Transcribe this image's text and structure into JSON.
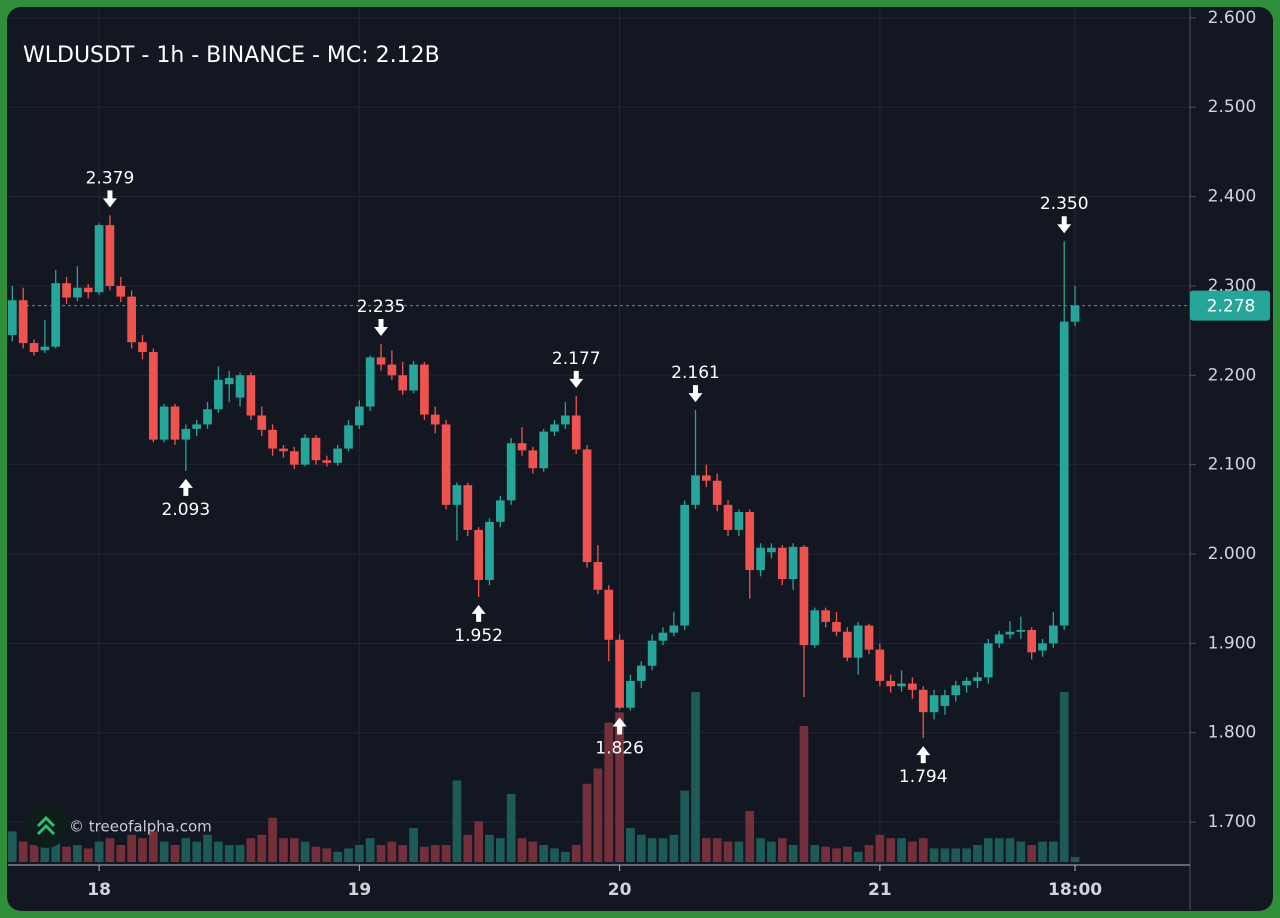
{
  "chart_data": {
    "type": "candlestick",
    "title": "WLDUSDT - 1h - BINANCE - MC: 2.12B",
    "watermark": "© treeofalpha.com",
    "x": [
      -8,
      -7,
      -6,
      -5,
      -4,
      -3,
      -2,
      -1,
      0,
      1,
      2,
      3,
      4,
      5,
      6,
      7,
      8,
      9,
      10,
      11,
      12,
      13,
      14,
      15,
      16,
      17,
      18,
      19,
      20,
      21,
      22,
      23,
      24,
      25,
      26,
      27,
      28,
      29,
      30,
      31,
      32,
      33,
      34,
      35,
      36,
      37,
      38,
      39,
      40,
      41,
      42,
      43,
      44,
      45,
      46,
      47,
      48,
      49,
      50,
      51,
      52,
      53,
      54,
      55,
      56,
      57,
      58,
      59,
      60,
      61,
      62,
      63,
      64,
      65,
      66,
      67,
      68,
      69,
      70,
      71,
      72,
      73,
      74,
      75,
      76,
      77,
      78,
      79,
      80,
      81,
      82,
      83,
      84,
      85,
      86,
      87,
      88,
      89,
      90
    ],
    "open": [
      2.245,
      2.284,
      2.236,
      2.228,
      2.232,
      2.303,
      2.287,
      2.298,
      2.293,
      2.368,
      2.3,
      2.288,
      2.237,
      2.226,
      2.128,
      2.165,
      2.128,
      2.14,
      2.145,
      2.162,
      2.19,
      2.175,
      2.2,
      2.155,
      2.139,
      2.118,
      2.115,
      2.1,
      2.13,
      2.105,
      2.102,
      2.118,
      2.144,
      2.165,
      2.22,
      2.212,
      2.2,
      2.183,
      2.212,
      2.156,
      2.145,
      2.055,
      2.077,
      2.027,
      1.971,
      2.036,
      2.06,
      2.124,
      2.116,
      2.096,
      2.137,
      2.145,
      2.155,
      2.117,
      1.991,
      1.96,
      1.904,
      1.828,
      1.858,
      1.875,
      1.903,
      1.912,
      1.92,
      2.055,
      2.088,
      2.082,
      2.055,
      2.027,
      2.047,
      1.982,
      2.002,
      2.007,
      1.972,
      2.008,
      1.898,
      1.937,
      1.924,
      1.913,
      1.884,
      1.92,
      1.893,
      1.858,
      1.852,
      1.855,
      1.848,
      1.823,
      1.83,
      1.842,
      1.853,
      1.858,
      1.862,
      1.9,
      1.91,
      1.913,
      1.915,
      1.892,
      1.9,
      1.92,
      2.26
    ],
    "high": [
      2.3,
      2.298,
      2.24,
      2.262,
      2.318,
      2.31,
      2.322,
      2.302,
      2.37,
      2.379,
      2.31,
      2.295,
      2.245,
      2.23,
      2.168,
      2.168,
      2.145,
      2.15,
      2.17,
      2.21,
      2.205,
      2.203,
      2.203,
      2.165,
      2.145,
      2.122,
      2.12,
      2.134,
      2.133,
      2.11,
      2.122,
      2.15,
      2.172,
      2.222,
      2.235,
      2.228,
      2.215,
      2.216,
      2.215,
      2.165,
      2.15,
      2.08,
      2.08,
      2.03,
      2.04,
      2.065,
      2.13,
      2.142,
      2.12,
      2.14,
      2.15,
      2.17,
      2.177,
      2.122,
      2.01,
      1.965,
      1.91,
      1.865,
      1.88,
      1.91,
      1.918,
      1.935,
      2.06,
      2.161,
      2.1,
      2.09,
      2.06,
      2.05,
      2.05,
      2.012,
      2.012,
      2.01,
      2.012,
      2.01,
      1.94,
      1.94,
      1.935,
      1.918,
      1.924,
      1.922,
      1.9,
      1.865,
      1.87,
      1.862,
      1.852,
      1.848,
      1.848,
      1.858,
      1.862,
      1.868,
      1.905,
      1.914,
      1.925,
      1.93,
      1.918,
      1.905,
      1.935,
      2.35,
      2.3
    ],
    "low": [
      2.238,
      2.23,
      2.222,
      2.225,
      2.23,
      2.28,
      2.283,
      2.286,
      2.29,
      2.295,
      2.282,
      2.23,
      2.218,
      2.125,
      2.125,
      2.122,
      2.093,
      2.132,
      2.14,
      2.158,
      2.17,
      2.165,
      2.15,
      2.132,
      2.11,
      2.108,
      2.095,
      2.098,
      2.1,
      2.098,
      2.099,
      2.115,
      2.14,
      2.16,
      2.205,
      2.195,
      2.178,
      2.18,
      2.15,
      2.135,
      2.05,
      2.015,
      2.02,
      1.952,
      1.965,
      2.03,
      2.055,
      2.11,
      2.09,
      2.092,
      2.132,
      2.14,
      2.112,
      1.985,
      1.955,
      1.88,
      1.826,
      1.825,
      1.85,
      1.87,
      1.898,
      1.908,
      1.915,
      2.05,
      2.075,
      2.048,
      2.02,
      2.02,
      1.95,
      1.975,
      1.995,
      1.965,
      1.96,
      1.84,
      1.895,
      1.918,
      1.908,
      1.88,
      1.865,
      1.888,
      1.852,
      1.845,
      1.846,
      1.838,
      1.794,
      1.815,
      1.82,
      1.835,
      1.845,
      1.85,
      1.855,
      1.895,
      1.905,
      1.905,
      1.882,
      1.885,
      1.895,
      1.915,
      2.255
    ],
    "close": [
      2.284,
      2.236,
      2.226,
      2.232,
      2.303,
      2.287,
      2.298,
      2.293,
      2.368,
      2.3,
      2.288,
      2.237,
      2.226,
      2.128,
      2.165,
      2.128,
      2.14,
      2.145,
      2.162,
      2.195,
      2.197,
      2.2,
      2.155,
      2.139,
      2.118,
      2.115,
      2.1,
      2.13,
      2.105,
      2.102,
      2.118,
      2.144,
      2.165,
      2.22,
      2.212,
      2.2,
      2.183,
      2.212,
      2.156,
      2.145,
      2.055,
      2.077,
      2.027,
      1.971,
      2.036,
      2.06,
      2.124,
      2.116,
      2.096,
      2.137,
      2.145,
      2.155,
      2.117,
      1.991,
      1.96,
      1.904,
      1.828,
      1.858,
      1.875,
      1.903,
      1.912,
      1.92,
      2.055,
      2.088,
      2.082,
      2.055,
      2.027,
      2.047,
      1.982,
      2.007,
      2.007,
      1.972,
      2.008,
      1.898,
      1.937,
      1.924,
      1.913,
      1.884,
      1.92,
      1.893,
      1.858,
      1.852,
      1.855,
      1.848,
      1.823,
      1.842,
      1.842,
      1.853,
      1.858,
      1.862,
      1.9,
      1.91,
      1.913,
      1.915,
      1.89,
      1.9,
      1.92,
      2.26,
      2.278
    ],
    "volume": [
      18,
      12,
      10,
      10,
      12,
      9,
      10,
      8,
      12,
      14,
      10,
      16,
      14,
      18,
      12,
      10,
      14,
      12,
      16,
      12,
      10,
      10,
      14,
      16,
      26,
      14,
      14,
      12,
      9,
      8,
      6,
      8,
      10,
      14,
      10,
      12,
      10,
      20,
      9,
      10,
      10,
      48,
      16,
      24,
      16,
      14,
      40,
      14,
      12,
      10,
      8,
      6,
      10,
      46,
      55,
      82,
      88,
      20,
      16,
      14,
      14,
      16,
      42,
      100,
      14,
      14,
      12,
      12,
      30,
      14,
      12,
      14,
      10,
      80,
      10,
      9,
      8,
      9,
      6,
      10,
      16,
      14,
      14,
      12,
      14,
      8,
      8,
      8,
      8,
      10,
      14,
      14,
      14,
      12,
      10,
      12,
      12,
      100,
      3
    ],
    "up_color": "#26a69a",
    "down_color": "#ef5350",
    "up_volume_color": "#1c5b58",
    "down_volume_color": "#74303a",
    "last_price": 2.278,
    "annotations": [
      {
        "x": 1,
        "value": 2.379,
        "label": "2.379",
        "side": "high"
      },
      {
        "x": 8,
        "value": 2.093,
        "label": "2.093",
        "side": "low"
      },
      {
        "x": 26,
        "value": 2.235,
        "label": "2.235",
        "side": "high"
      },
      {
        "x": 35,
        "value": 1.952,
        "label": "1.952",
        "side": "low"
      },
      {
        "x": 44,
        "value": 2.177,
        "label": "2.177",
        "side": "high"
      },
      {
        "x": 48,
        "value": 1.826,
        "label": "1.826",
        "side": "low"
      },
      {
        "x": 55,
        "value": 2.161,
        "label": "2.161",
        "side": "high"
      },
      {
        "x": 76,
        "value": 1.794,
        "label": "1.794",
        "side": "low"
      },
      {
        "x": 89,
        "value": 2.35,
        "label": "2.350",
        "side": "high"
      }
    ],
    "xlim": [
      -8.4,
      100.6
    ],
    "xticks": [
      {
        "value": 0,
        "label": "18"
      },
      {
        "value": 24,
        "label": "19"
      },
      {
        "value": 48,
        "label": "20"
      },
      {
        "value": 72,
        "label": "21"
      },
      {
        "value": 90,
        "label": "18:00"
      }
    ],
    "ylim": [
      1.652,
      2.611
    ],
    "yticks": [
      {
        "value": 1.7,
        "label": "1.700"
      },
      {
        "value": 1.8,
        "label": "1.800"
      },
      {
        "value": 1.9,
        "label": "1.900"
      },
      {
        "value": 2.0,
        "label": "2.000"
      },
      {
        "value": 2.1,
        "label": "2.100"
      },
      {
        "value": 2.2,
        "label": "2.200"
      },
      {
        "value": 2.3,
        "label": "2.300"
      },
      {
        "value": 2.4,
        "label": "2.400"
      },
      {
        "value": 2.5,
        "label": "2.500"
      },
      {
        "value": 2.6,
        "label": "2.600"
      }
    ],
    "grid": true
  }
}
